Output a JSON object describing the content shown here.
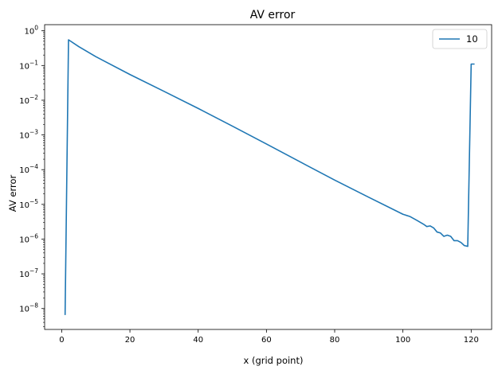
{
  "chart_data": {
    "type": "line",
    "title": "AV error",
    "xlabel": "x (grid point)",
    "ylabel": "AV error",
    "xlim": [
      -5,
      126
    ],
    "ylim": [
      2.5e-09,
      1.5
    ],
    "yscale": "log",
    "grid": false,
    "legend": "top-right",
    "x_ticks": [
      0,
      20,
      40,
      60,
      80,
      100,
      120
    ],
    "x_tick_labels": [
      "0",
      "20",
      "40",
      "60",
      "80",
      "100",
      "120"
    ],
    "y_tick_exponents": [
      -8,
      -7,
      -6,
      -5,
      -4,
      -3,
      -2,
      -1,
      0
    ],
    "y_tick_base": "10",
    "series": [
      {
        "name": "10",
        "color": "#1f77b4",
        "x": [
          1,
          2,
          5,
          10,
          20,
          30,
          40,
          50,
          60,
          70,
          80,
          90,
          100,
          102,
          104,
          106,
          107,
          108,
          109,
          110,
          111,
          112,
          113,
          114,
          115,
          116,
          117,
          118,
          119,
          120,
          121
        ],
        "y": [
          6.5e-09,
          0.55,
          0.35,
          0.18,
          0.055,
          0.018,
          0.0058,
          0.0018,
          0.00055,
          0.000165,
          5e-05,
          1.6e-05,
          5.2e-06,
          4.5e-06,
          3.5e-06,
          2.7e-06,
          2.3e-06,
          2.4e-06,
          2.1e-06,
          1.6e-06,
          1.5e-06,
          1.2e-06,
          1.3e-06,
          1.2e-06,
          9e-07,
          9e-07,
          8e-07,
          6.5e-07,
          6.2e-07,
          0.11,
          0.11
        ]
      }
    ]
  }
}
